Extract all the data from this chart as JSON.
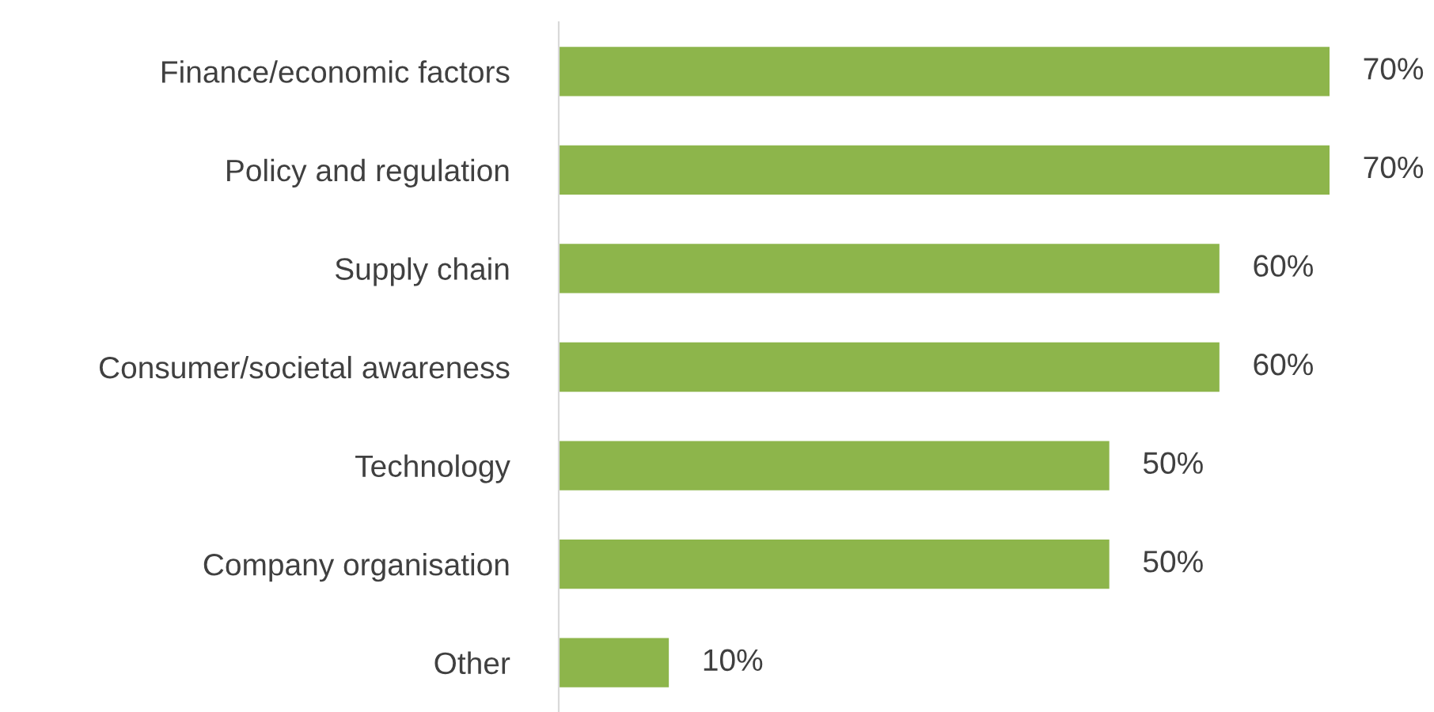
{
  "chart_data": {
    "type": "bar",
    "orientation": "horizontal",
    "categories": [
      "Finance/economic factors",
      "Policy and regulation",
      "Supply chain",
      "Consumer/societal awareness",
      "Technology",
      "Company organisation",
      "Other"
    ],
    "values": [
      70,
      70,
      60,
      60,
      50,
      50,
      10
    ],
    "value_labels": [
      "70%",
      "70%",
      "60%",
      "60%",
      "50%",
      "50%",
      "10%"
    ],
    "color": "#8db54b",
    "grid": false,
    "legend": false
  }
}
